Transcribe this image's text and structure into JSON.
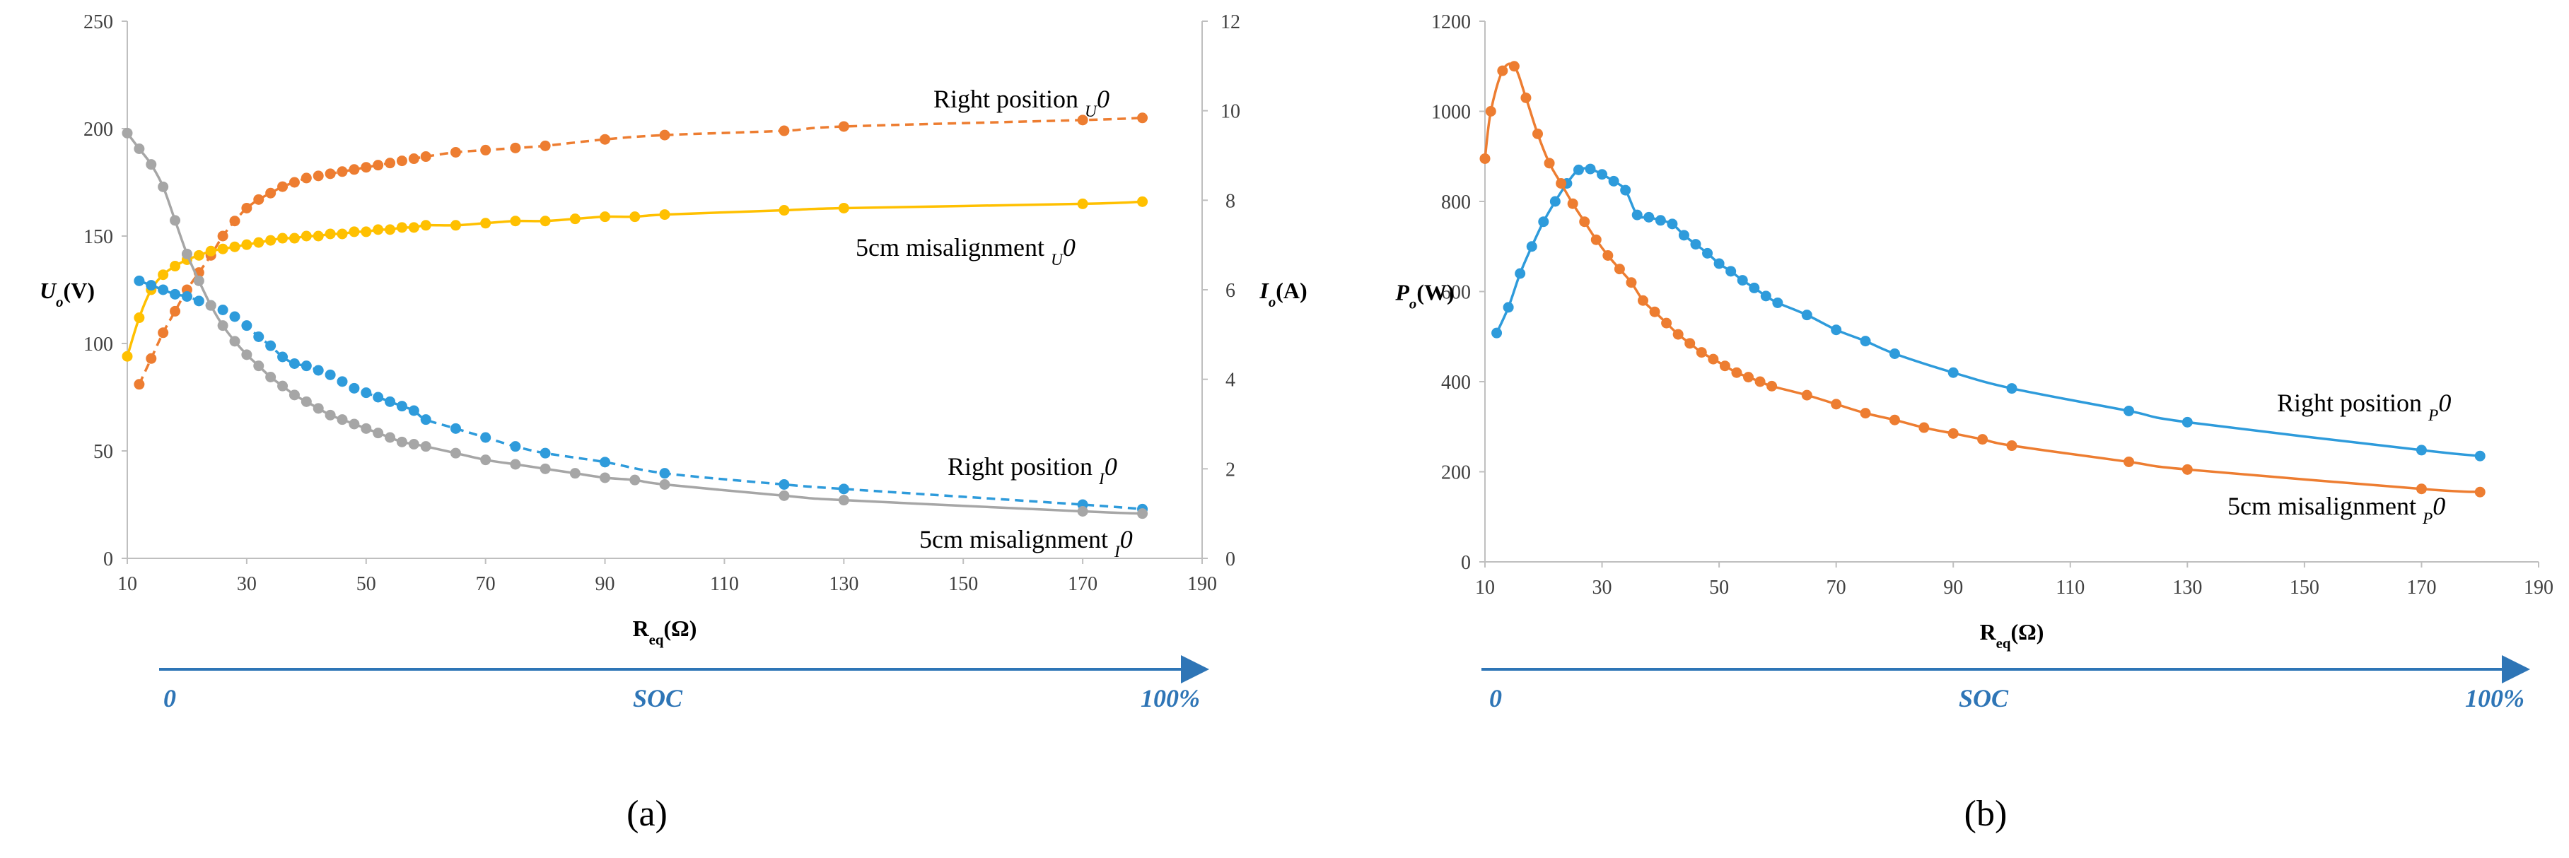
{
  "chart_data": [
    {
      "id": "a",
      "type": "line",
      "panel_label": "(a)",
      "xlabel": "R",
      "xlabel_sub": "eq",
      "xlabel_unit": "(Ω)",
      "xlim": [
        10,
        190
      ],
      "xticks": [
        10,
        30,
        50,
        70,
        90,
        110,
        130,
        150,
        170,
        190
      ],
      "ylabel_left": "U",
      "ylabel_left_sub": "o",
      "ylabel_left_unit": "(V)",
      "ylim_left": [
        0,
        250
      ],
      "yticks_left": [
        0,
        50,
        100,
        150,
        200,
        250
      ],
      "ylabel_right": "I",
      "ylabel_right_sub": "o",
      "ylabel_right_unit": "(A)",
      "ylim_right": [
        0,
        12
      ],
      "yticks_right": [
        0,
        2,
        4,
        6,
        8,
        10,
        12
      ],
      "soc": {
        "label": "SOC",
        "start": "0",
        "end": "100%"
      },
      "series": [
        {
          "name": "Right position U0",
          "label": "Right position",
          "label_sym": "U",
          "label_sub": "0",
          "axis": "left",
          "color": "#ED7D31",
          "dashed": true,
          "x": [
            12,
            14,
            16,
            18,
            20,
            22,
            24,
            26,
            28,
            30,
            32,
            34,
            36,
            38,
            40,
            42,
            44,
            46,
            48,
            50,
            52,
            54,
            56,
            58,
            60,
            65,
            70,
            75,
            80,
            90,
            100,
            120,
            130,
            170,
            180
          ],
          "y": [
            81,
            93,
            105,
            115,
            125,
            133,
            141,
            150,
            157,
            163,
            167,
            170,
            173,
            175,
            177,
            178,
            179,
            180,
            181,
            182,
            183,
            184,
            185,
            186,
            187,
            189,
            190,
            191,
            192,
            195,
            197,
            199,
            201,
            204,
            205
          ]
        },
        {
          "name": "5cm misalignment U0",
          "label": "5cm misalignment",
          "label_sym": "U",
          "label_sub": "0",
          "axis": "left",
          "color": "#FFC000",
          "dashed": false,
          "x": [
            10,
            12,
            14,
            16,
            18,
            20,
            22,
            24,
            26,
            28,
            30,
            32,
            34,
            36,
            38,
            40,
            42,
            44,
            46,
            48,
            50,
            52,
            54,
            56,
            58,
            60,
            65,
            70,
            75,
            80,
            85,
            90,
            95,
            100,
            120,
            130,
            170,
            180
          ],
          "y": [
            94,
            112,
            125,
            132,
            136,
            139,
            141,
            143,
            144,
            145,
            146,
            147,
            148,
            149,
            149,
            150,
            150,
            151,
            151,
            152,
            152,
            153,
            153,
            154,
            154,
            155,
            155,
            156,
            157,
            157,
            158,
            159,
            159,
            160,
            162,
            163,
            165,
            166
          ]
        },
        {
          "name": "Right position I0",
          "label": "Right position",
          "label_sym": "I",
          "label_sub": "0",
          "axis": "right",
          "color": "#2E9BDB",
          "dashed": true,
          "x": [
            12,
            14,
            16,
            18,
            20,
            22,
            24,
            26,
            28,
            30,
            32,
            34,
            36,
            38,
            40,
            42,
            44,
            46,
            48,
            50,
            52,
            54,
            56,
            58,
            60,
            65,
            70,
            75,
            80,
            90,
            100,
            120,
            130,
            170,
            180
          ],
          "y": [
            6.2,
            6.1,
            6.0,
            5.9,
            5.85,
            5.75,
            5.65,
            5.55,
            5.4,
            5.2,
            4.95,
            4.75,
            4.5,
            4.35,
            4.3,
            4.2,
            4.1,
            3.95,
            3.8,
            3.7,
            3.6,
            3.5,
            3.4,
            3.3,
            3.1,
            2.9,
            2.7,
            2.5,
            2.35,
            2.15,
            1.9,
            1.65,
            1.55,
            1.2,
            1.1
          ]
        },
        {
          "name": "5cm misalignment I0",
          "label": "5cm misalignment",
          "label_sym": "I",
          "label_sub": "0",
          "axis": "right",
          "color": "#A6A6A6",
          "dashed": false,
          "x": [
            10,
            12,
            14,
            16,
            18,
            20,
            22,
            24,
            26,
            28,
            30,
            32,
            34,
            36,
            38,
            40,
            42,
            44,
            46,
            48,
            50,
            52,
            54,
            56,
            58,
            60,
            65,
            70,
            75,
            80,
            85,
            90,
            95,
            100,
            120,
            130,
            170,
            180
          ],
          "y": [
            9.5,
            9.15,
            8.8,
            8.3,
            7.55,
            6.8,
            6.2,
            5.65,
            5.2,
            4.85,
            4.55,
            4.3,
            4.05,
            3.85,
            3.65,
            3.5,
            3.35,
            3.2,
            3.1,
            3.0,
            2.9,
            2.8,
            2.7,
            2.6,
            2.55,
            2.5,
            2.35,
            2.2,
            2.1,
            2.0,
            1.9,
            1.8,
            1.75,
            1.65,
            1.4,
            1.3,
            1.05,
            1.0
          ]
        }
      ]
    },
    {
      "id": "b",
      "type": "line",
      "panel_label": "(b)",
      "xlabel": "R",
      "xlabel_sub": "eq",
      "xlabel_unit": "(Ω)",
      "xlim": [
        10,
        190
      ],
      "xticks": [
        10,
        30,
        50,
        70,
        90,
        110,
        130,
        150,
        170,
        190
      ],
      "ylabel_left": "P",
      "ylabel_left_sub": "o",
      "ylabel_left_unit": "(W)",
      "ylim_left": [
        0,
        1200
      ],
      "yticks_left": [
        0,
        200,
        400,
        600,
        800,
        1000,
        1200
      ],
      "soc": {
        "label": "SOC",
        "start": "0",
        "end": "100%"
      },
      "series": [
        {
          "name": "Right position P0",
          "label": "Right position",
          "label_sym": "P",
          "label_sub": "0",
          "axis": "left",
          "color": "#2E9BDB",
          "dashed": false,
          "x": [
            12,
            14,
            16,
            18,
            20,
            22,
            24,
            26,
            28,
            30,
            32,
            34,
            36,
            38,
            40,
            42,
            44,
            46,
            48,
            50,
            52,
            54,
            56,
            58,
            60,
            65,
            70,
            75,
            80,
            90,
            100,
            120,
            130,
            170,
            180
          ],
          "y": [
            508,
            565,
            640,
            700,
            755,
            800,
            840,
            870,
            872,
            860,
            845,
            825,
            770,
            765,
            758,
            750,
            725,
            705,
            685,
            662,
            645,
            625,
            608,
            590,
            575,
            548,
            515,
            490,
            462,
            420,
            385,
            335,
            310,
            248,
            235
          ]
        },
        {
          "name": "5cm misalignment P0",
          "label": "5cm misalignment",
          "label_sym": "P",
          "label_sub": "0",
          "axis": "left",
          "color": "#ED7D31",
          "dashed": false,
          "x": [
            10,
            11,
            13,
            15,
            17,
            19,
            21,
            23,
            25,
            27,
            29,
            31,
            33,
            35,
            37,
            39,
            41,
            43,
            45,
            47,
            49,
            51,
            53,
            55,
            57,
            59,
            65,
            70,
            75,
            80,
            85,
            90,
            95,
            100,
            120,
            130,
            170,
            180
          ],
          "y": [
            895,
            1000,
            1090,
            1100,
            1030,
            950,
            885,
            840,
            795,
            755,
            715,
            680,
            650,
            620,
            580,
            555,
            530,
            505,
            485,
            465,
            450,
            435,
            420,
            410,
            400,
            390,
            370,
            350,
            330,
            315,
            298,
            285,
            272,
            258,
            222,
            205,
            162,
            155
          ]
        }
      ]
    }
  ]
}
